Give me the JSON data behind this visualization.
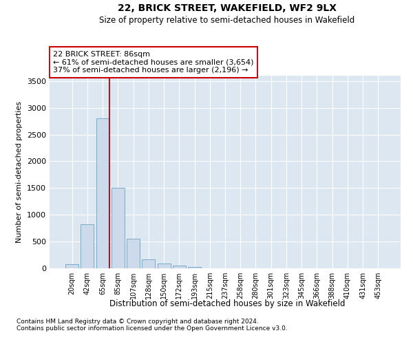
{
  "title": "22, BRICK STREET, WAKEFIELD, WF2 9LX",
  "subtitle": "Size of property relative to semi-detached houses in Wakefield",
  "xlabel": "Distribution of semi-detached houses by size in Wakefield",
  "ylabel": "Number of semi-detached properties",
  "categories": [
    "20sqm",
    "42sqm",
    "65sqm",
    "85sqm",
    "107sqm",
    "128sqm",
    "150sqm",
    "172sqm",
    "193sqm",
    "215sqm",
    "237sqm",
    "258sqm",
    "280sqm",
    "301sqm",
    "323sqm",
    "345sqm",
    "366sqm",
    "388sqm",
    "410sqm",
    "431sqm",
    "453sqm"
  ],
  "values": [
    75,
    820,
    2800,
    1500,
    555,
    170,
    90,
    50,
    30,
    0,
    0,
    0,
    0,
    0,
    0,
    0,
    0,
    0,
    0,
    0,
    0
  ],
  "bar_color": "#ccdaeb",
  "bar_edge_color": "#7aaac8",
  "vline_color": "#cc0000",
  "annotation_box_text": "22 BRICK STREET: 86sqm\n← 61% of semi-detached houses are smaller (3,654)\n37% of semi-detached houses are larger (2,196) →",
  "annotation_box_color": "#cc0000",
  "ylim": [
    0,
    3600
  ],
  "yticks": [
    0,
    500,
    1000,
    1500,
    2000,
    2500,
    3000,
    3500
  ],
  "background_color": "#dde7f2",
  "grid_color": "#ffffff",
  "footnote1": "Contains HM Land Registry data © Crown copyright and database right 2024.",
  "footnote2": "Contains public sector information licensed under the Open Government Licence v3.0."
}
